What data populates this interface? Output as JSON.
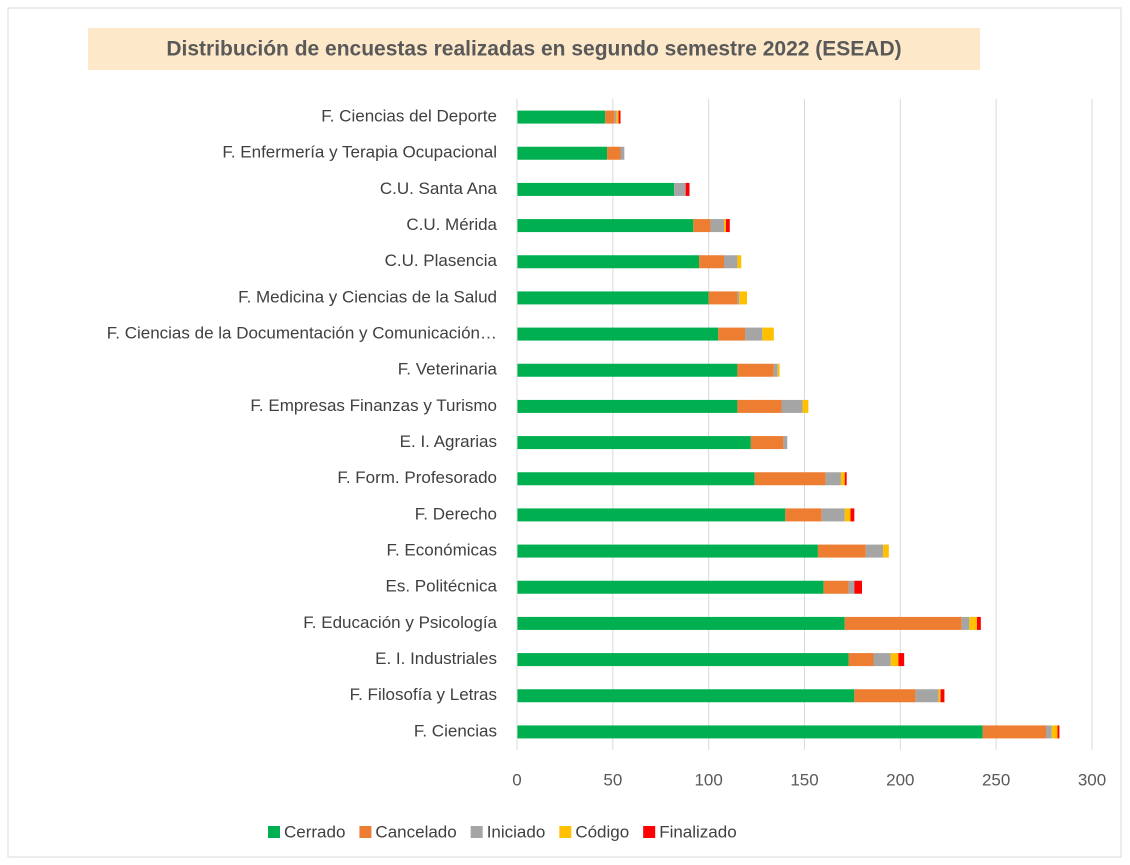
{
  "chart_data": {
    "type": "bar",
    "orientation": "horizontal",
    "stacked": true,
    "title": "Distribución de encuestas realizadas en segundo semestre 2022 (ESEAD)",
    "categories": [
      "F. Ciencias del Deporte",
      "F. Enfermería y Terapia Ocupacional",
      "C.U. Santa Ana",
      "C.U. Mérida",
      "C.U. Plasencia",
      "F. Medicina y Ciencias de la Salud",
      "F. Ciencias de la Documentación y Comunicación…",
      "F. Veterinaria",
      "F. Empresas Finanzas y Turismo",
      "E. I. Agrarias",
      "F. Form. Profesorado",
      "F. Derecho",
      "F. Económicas",
      "Es. Politécnica",
      "F. Educación y Psicología",
      "E. I. Industriales",
      "F. Filosofía y Letras",
      "F. Ciencias"
    ],
    "series": [
      {
        "name": "Cerrado",
        "color": "#00b050",
        "values": [
          46,
          47,
          82,
          92,
          95,
          100,
          105,
          115,
          115,
          122,
          124,
          140,
          157,
          160,
          171,
          173,
          176,
          243
        ]
      },
      {
        "name": "Cancelado",
        "color": "#ed7d31",
        "values": [
          5,
          7,
          0,
          9,
          13,
          15,
          14,
          19,
          23,
          17,
          37,
          19,
          25,
          13,
          61,
          13,
          32,
          33
        ]
      },
      {
        "name": "Iniciado",
        "color": "#a5a5a5",
        "values": [
          1,
          2,
          6,
          7,
          7,
          1,
          9,
          2,
          11,
          2,
          8,
          12,
          9,
          3,
          4,
          9,
          12,
          3
        ]
      },
      {
        "name": "Código",
        "color": "#ffc000",
        "values": [
          1,
          0,
          0,
          1,
          2,
          4,
          6,
          1,
          3,
          0,
          2,
          3,
          3,
          0,
          4,
          4,
          1,
          3
        ]
      },
      {
        "name": "Finalizado",
        "color": "#ff0000",
        "values": [
          1,
          0,
          2,
          2,
          0,
          0,
          0,
          0,
          0,
          0,
          1,
          2,
          0,
          4,
          2,
          3,
          2,
          1
        ]
      }
    ],
    "xlim": [
      0,
      300
    ],
    "xticks": [
      0,
      50,
      100,
      150,
      200,
      250,
      300
    ],
    "grid": true,
    "legend": "bottom"
  }
}
